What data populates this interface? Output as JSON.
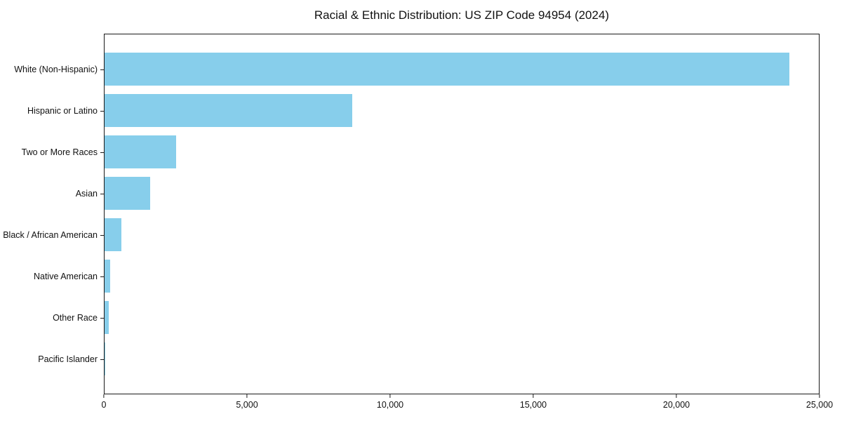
{
  "chart_data": {
    "type": "bar",
    "orientation": "horizontal",
    "title": "Racial & Ethnic Distribution: US ZIP Code 94954 (2024)",
    "xlabel": "",
    "ylabel": "",
    "categories": [
      "White (Non-Hispanic)",
      "Hispanic or Latino",
      "Two or More Races",
      "Asian",
      "Black / African American",
      "Native American",
      "Other Race",
      "Pacific Islander"
    ],
    "values": [
      23960,
      8680,
      2500,
      1590,
      590,
      195,
      145,
      30
    ],
    "xlim": [
      0,
      25000
    ],
    "x_ticks": [
      0,
      5000,
      10000,
      15000,
      20000,
      25000
    ],
    "x_tick_labels": [
      "0",
      "5,000",
      "10,000",
      "15,000",
      "20,000",
      "25,000"
    ],
    "bar_color": "#87CEEB",
    "grid": false,
    "legend": null
  }
}
